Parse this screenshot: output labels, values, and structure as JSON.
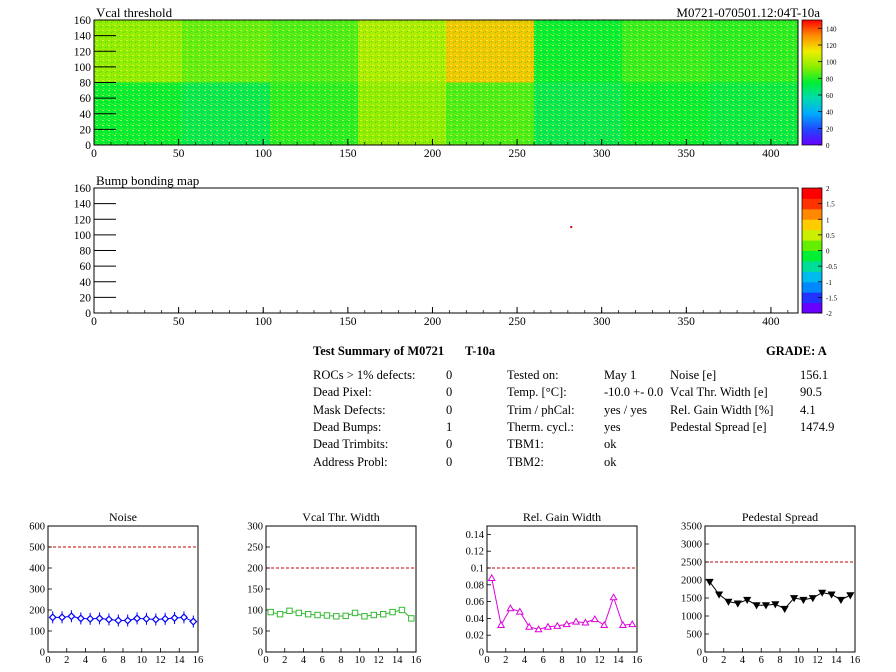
{
  "top_map": {
    "title": "Vcal threshold",
    "module_label": "M0721-070501.12:04T-10a",
    "x_ticks": [
      "0",
      "50",
      "100",
      "150",
      "200",
      "250",
      "300",
      "350",
      "400"
    ],
    "y_ticks": [
      "0",
      "20",
      "40",
      "60",
      "80",
      "100",
      "120",
      "140",
      "160"
    ],
    "palette_ticks": [
      "0",
      "20",
      "40",
      "60",
      "80",
      "100",
      "120",
      "140"
    ]
  },
  "bump_map": {
    "title": "Bump bonding map",
    "x_ticks": [
      "0",
      "50",
      "100",
      "150",
      "200",
      "250",
      "300",
      "350",
      "400"
    ],
    "y_ticks": [
      "0",
      "20",
      "40",
      "60",
      "80",
      "100",
      "120",
      "140",
      "160"
    ],
    "palette_ticks": [
      "-2",
      "-1.5",
      "-1",
      "-0.5",
      "0",
      "0.5",
      "1",
      "1.5",
      "2"
    ]
  },
  "summary": {
    "title": "Test Summary of M0721",
    "test_id": "T-10a",
    "grade": "GRADE:  A",
    "defects": [
      {
        "label": "ROCs > 1% defects:",
        "value": "0"
      },
      {
        "label": "Dead Pixel:",
        "value": "0"
      },
      {
        "label": "Mask Defects:",
        "value": "0"
      },
      {
        "label": "Dead Bumps:",
        "value": "1"
      },
      {
        "label": "Dead Trimbits:",
        "value": "0"
      },
      {
        "label": "Address Probl:",
        "value": "0"
      }
    ],
    "conditions": [
      {
        "label": "Tested on:",
        "value": "May 1"
      },
      {
        "label": "Temp. [°C]:",
        "value": "-10.0 +- 0.0"
      },
      {
        "label": "Trim / phCal:",
        "value": "yes / yes"
      },
      {
        "label": "Therm. cycl.:",
        "value": "yes"
      },
      {
        "label": "TBM1:",
        "value": "ok"
      },
      {
        "label": "TBM2:",
        "value": "ok"
      }
    ],
    "results": [
      {
        "label": "Noise [e]",
        "value": "156.1"
      },
      {
        "label": "Vcal Thr. Width [e]",
        "value": "90.5"
      },
      {
        "label": "Rel. Gain Width [%]",
        "value": "4.1"
      },
      {
        "label": "Pedestal Spread [e]",
        "value": "1474.9"
      }
    ]
  },
  "chart_data": [
    {
      "type": "heatmap",
      "title": "Vcal threshold",
      "xlim": [
        0,
        416
      ],
      "ylim": [
        0,
        160
      ],
      "zlim": [
        0,
        150
      ],
      "roc_grid": {
        "cols": 8,
        "rows": 2
      },
      "roc_mean_values": [
        [
          75,
          70,
          80,
          95,
          85,
          70,
          75,
          72
        ],
        [
          95,
          88,
          85,
          100,
          120,
          75,
          82,
          80
        ]
      ]
    },
    {
      "type": "heatmap",
      "title": "Bump bonding map",
      "xlim": [
        0,
        416
      ],
      "ylim": [
        0,
        160
      ],
      "zlim": [
        -2,
        2
      ],
      "dead_bumps": [
        {
          "x": 282,
          "y": 110
        }
      ]
    },
    {
      "type": "line",
      "title": "Noise",
      "x": [
        0.5,
        1.5,
        2.5,
        3.5,
        4.5,
        5.5,
        6.5,
        7.5,
        8.5,
        9.5,
        10.5,
        11.5,
        12.5,
        13.5,
        14.5,
        15.5
      ],
      "values": [
        165,
        165,
        170,
        160,
        158,
        160,
        155,
        150,
        150,
        160,
        158,
        155,
        158,
        162,
        165,
        145
      ],
      "xlim": [
        0,
        16
      ],
      "ylim": [
        0,
        600
      ],
      "threshold": 500,
      "x_ticks": [
        "0",
        "2",
        "4",
        "6",
        "8",
        "10",
        "12",
        "14",
        "16"
      ],
      "y_ticks": [
        "0",
        "100",
        "200",
        "300",
        "400",
        "500",
        "600"
      ],
      "color": "#0000ff",
      "marker": "diamond"
    },
    {
      "type": "line",
      "title": "Vcal Thr. Width",
      "x": [
        0.5,
        1.5,
        2.5,
        3.5,
        4.5,
        5.5,
        6.5,
        7.5,
        8.5,
        9.5,
        10.5,
        11.5,
        12.5,
        13.5,
        14.5,
        15.5
      ],
      "values": [
        95,
        90,
        98,
        93,
        90,
        88,
        87,
        85,
        86,
        93,
        85,
        88,
        90,
        95,
        100,
        80
      ],
      "xlim": [
        0,
        16
      ],
      "ylim": [
        0,
        300
      ],
      "threshold": 200,
      "x_ticks": [
        "0",
        "2",
        "4",
        "6",
        "8",
        "10",
        "12",
        "14",
        "16"
      ],
      "y_ticks": [
        "0",
        "50",
        "100",
        "150",
        "200",
        "250",
        "300"
      ],
      "color": "#33bb33",
      "marker": "square"
    },
    {
      "type": "line",
      "title": "Rel. Gain Width",
      "x": [
        0.5,
        1.5,
        2.5,
        3.5,
        4.5,
        5.5,
        6.5,
        7.5,
        8.5,
        9.5,
        10.5,
        11.5,
        12.5,
        13.5,
        14.5,
        15.5
      ],
      "values": [
        0.088,
        0.032,
        0.052,
        0.048,
        0.03,
        0.027,
        0.03,
        0.031,
        0.033,
        0.036,
        0.035,
        0.039,
        0.032,
        0.065,
        0.032,
        0.033
      ],
      "xlim": [
        0,
        16
      ],
      "ylim": [
        0,
        0.15
      ],
      "threshold": 0.1,
      "x_ticks": [
        "0",
        "2",
        "4",
        "6",
        "8",
        "10",
        "12",
        "14",
        "16"
      ],
      "y_ticks": [
        "0",
        "0.02",
        "0.04",
        "0.06",
        "0.08",
        "0.1",
        "0.12",
        "0.14"
      ],
      "color": "#dd00dd",
      "marker": "triangle"
    },
    {
      "type": "line",
      "title": "Pedestal Spread",
      "x": [
        0.5,
        1.5,
        2.5,
        3.5,
        4.5,
        5.5,
        6.5,
        7.5,
        8.5,
        9.5,
        10.5,
        11.5,
        12.5,
        13.5,
        14.5,
        15.5
      ],
      "values": [
        1950,
        1600,
        1400,
        1350,
        1450,
        1300,
        1300,
        1330,
        1200,
        1500,
        1450,
        1500,
        1650,
        1600,
        1450,
        1580
      ],
      "xlim": [
        0,
        16
      ],
      "ylim": [
        0,
        3500
      ],
      "threshold": 2500,
      "x_ticks": [
        "0",
        "2",
        "4",
        "6",
        "8",
        "10",
        "12",
        "14",
        "16"
      ],
      "y_ticks": [
        "0",
        "500",
        "1000",
        "1500",
        "2000",
        "2500",
        "3000",
        "3500"
      ],
      "color": "#000000",
      "marker": "triangle-down"
    }
  ]
}
